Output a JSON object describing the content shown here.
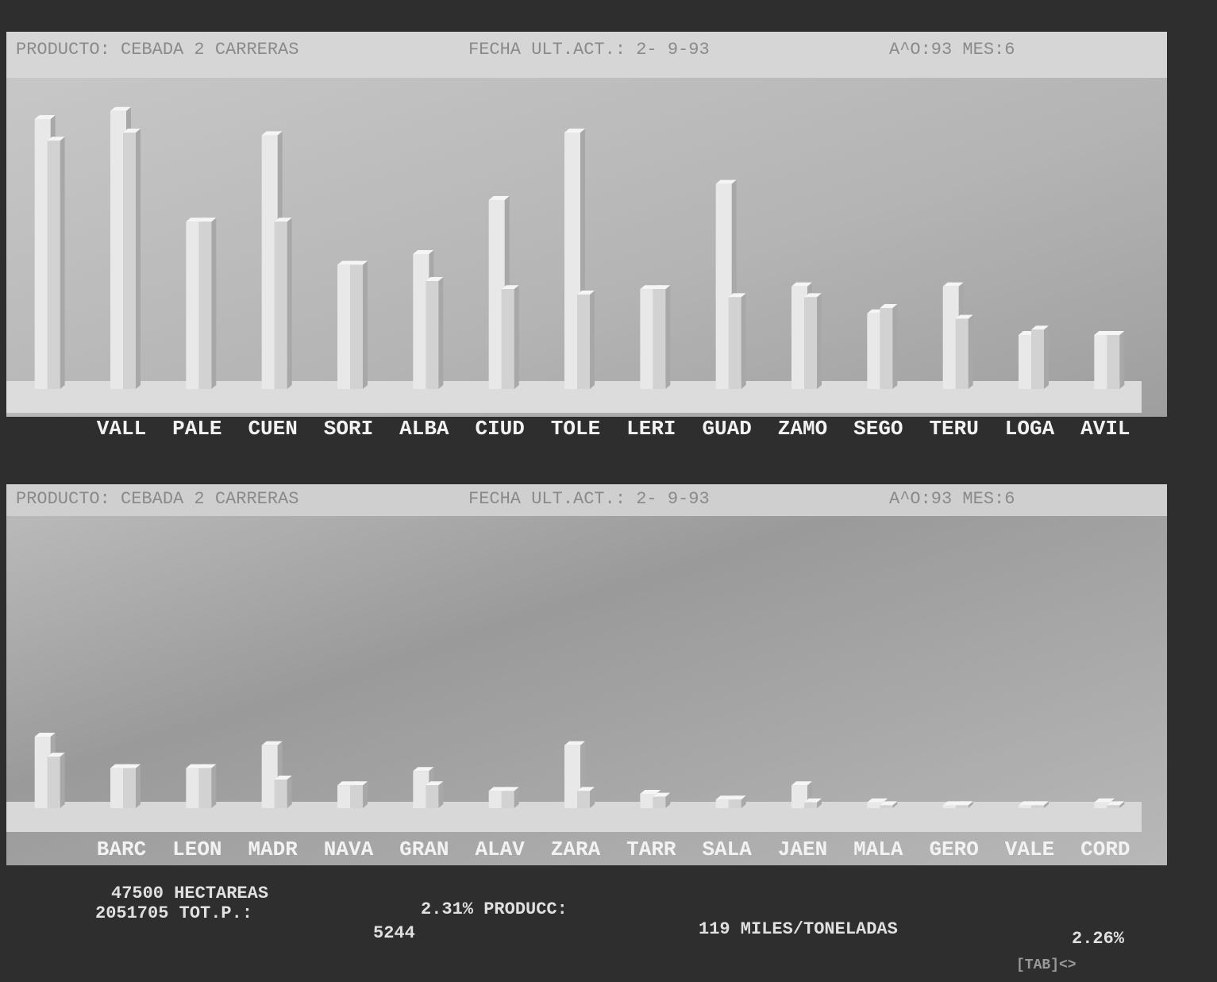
{
  "chart_data": [
    {
      "type": "bar",
      "header": {
        "product": "PRODUCTO: CEBADA 2 CARRERAS",
        "date": "FECHA ULT.ACT.:  2- 9-93",
        "period": "A^O:93 MES:6"
      },
      "categories": [
        null,
        "VALL",
        "PALE",
        "CUEN",
        "SORI",
        "ALBA",
        "CIUD",
        "TOLE",
        "LERI",
        "GUAD",
        "ZAMO",
        "SEGO",
        "TERU",
        "LOGA",
        "AVIL"
      ],
      "series": [
        {
          "color": "#e8e8e8",
          "values": [
            100,
            103,
            62,
            94,
            46,
            50,
            70,
            95,
            37,
            76,
            38,
            28,
            38,
            20,
            20
          ]
        },
        {
          "color": "#d2d2d2",
          "values": [
            92,
            95,
            62,
            62,
            46,
            40,
            37,
            35,
            37,
            34,
            34,
            30,
            26,
            22,
            20
          ]
        }
      ]
    },
    {
      "type": "bar",
      "header": {
        "product": "PRODUCTO: CEBADA 2 CARRERAS",
        "date": "FECHA ULT.ACT.:  2- 9-93",
        "period": "A^O:93 MES:6"
      },
      "categories": [
        null,
        "BARC",
        "LEON",
        "MADR",
        "NAVA",
        "GRAN",
        "ALAV",
        "ZARA",
        "TARR",
        "SALA",
        "JAEN",
        "MALA",
        "GERO",
        "VALE",
        "CORD"
      ],
      "series": [
        {
          "color": "#e8e8e8",
          "values": [
            25,
            14,
            14,
            22,
            8,
            13,
            6,
            22,
            5,
            3,
            8,
            2,
            1,
            1,
            2
          ]
        },
        {
          "color": "#d2d2d2",
          "values": [
            18,
            14,
            14,
            10,
            8,
            8,
            6,
            6,
            4,
            3,
            2,
            1,
            1,
            1,
            1
          ]
        }
      ]
    }
  ],
  "footer": {
    "area": "47500 HECTAREAS",
    "total": "2051705 TOT.P.:",
    "pct1": "2.31% PRODUCC:",
    "count": "5244",
    "prod": "119 MILES/TONELADAS",
    "pct2": "2.26%",
    "nav": "[TAB]<>"
  }
}
